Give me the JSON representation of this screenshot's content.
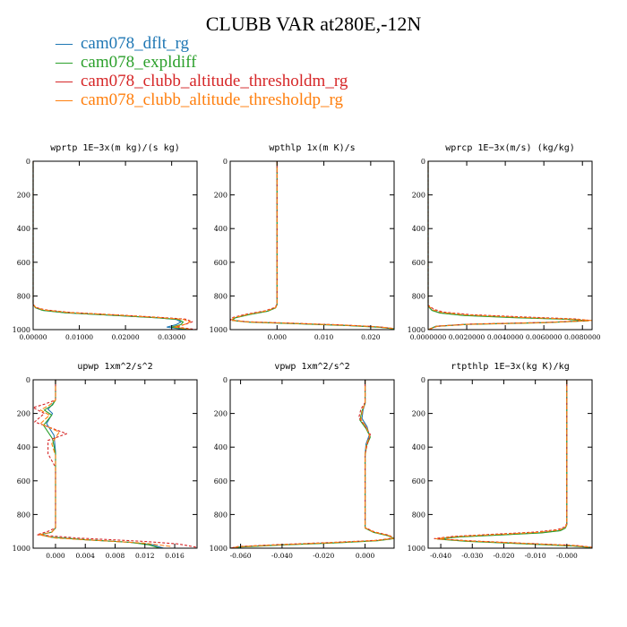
{
  "title": "CLUBB VAR at280E,-12N",
  "colors": {
    "s0": "#1f77b4",
    "s1": "#2ca02c",
    "s2": "#d62728",
    "s3": "#ff7f0e"
  },
  "legend": [
    {
      "dash": "—",
      "label": "cam078_dflt_rg"
    },
    {
      "dash": "—",
      "label": "cam078_expldiff"
    },
    {
      "dash": "—",
      "label": "cam078_clubb_altitude_thresholdm_rg"
    },
    {
      "dash": "—",
      "label": "cam078_clubb_altitude_thresholdp_rg"
    }
  ],
  "chart_data": [
    {
      "type": "line",
      "title": "wprtp  1E−3x(m kg)/(s kg)",
      "xlim": [
        0,
        0.0355
      ],
      "ylim": [
        1000,
        0
      ],
      "xticks": [
        0,
        0.01,
        0.02,
        0.03
      ],
      "xticklabels": [
        "0.00000",
        "0.01000",
        "0.02000",
        "0.03000"
      ],
      "yticks": [
        0,
        200,
        400,
        600,
        800,
        1000
      ],
      "yticklabels": [
        "0",
        "200",
        "400",
        "600",
        "800",
        "1000"
      ],
      "series": [
        {
          "name": "cam078_dflt_rg",
          "x": [
            0,
            0,
            0.0005,
            0.002,
            0.007,
            0.017,
            0.027,
            0.031,
            0.032,
            0.031,
            0.029,
            0.033
          ],
          "y": [
            0,
            850,
            870,
            885,
            900,
            915,
            930,
            940,
            955,
            970,
            985,
            1000
          ]
        },
        {
          "name": "cam078_expldiff",
          "x": [
            0,
            0,
            0.0005,
            0.002,
            0.007,
            0.017,
            0.027,
            0.0315,
            0.0325,
            0.032,
            0.03,
            0.034
          ],
          "y": [
            0,
            850,
            870,
            885,
            900,
            915,
            930,
            940,
            955,
            970,
            985,
            1000
          ]
        },
        {
          "name": "cam078_clubb_altitude_thresholdm_rg",
          "x": [
            0,
            0,
            0.0006,
            0.0025,
            0.008,
            0.018,
            0.028,
            0.033,
            0.0345,
            0.033,
            0.031,
            0.0355
          ],
          "y": [
            0,
            850,
            868,
            882,
            898,
            912,
            928,
            938,
            953,
            968,
            984,
            1000
          ]
        },
        {
          "name": "cam078_clubb_altitude_thresholdp_rg",
          "x": [
            0,
            0,
            0.0006,
            0.0023,
            0.0078,
            0.0178,
            0.0278,
            0.0325,
            0.034,
            0.0328,
            0.0305,
            0.0345
          ],
          "y": [
            0,
            850,
            869,
            883,
            899,
            913,
            929,
            939,
            954,
            969,
            984,
            1000
          ]
        }
      ]
    },
    {
      "type": "line",
      "title": "wpthlp  1x(m K)/s",
      "xlim": [
        -0.01,
        0.025
      ],
      "ylim": [
        1000,
        0
      ],
      "xticks": [
        0,
        0.01,
        0.02
      ],
      "xticklabels": [
        "0.000",
        "0.010",
        "0.020"
      ],
      "yticks": [
        0,
        200,
        400,
        600,
        800,
        1000
      ],
      "yticklabels": [
        "0",
        "200",
        "400",
        "600",
        "800",
        "1000"
      ],
      "series": [
        {
          "name": "cam078_dflt_rg",
          "x": [
            0,
            0,
            -0.0003,
            -0.002,
            -0.006,
            -0.009,
            -0.0095,
            -0.006,
            0.005,
            0.015,
            0.022,
            0.025
          ],
          "y": [
            0,
            850,
            870,
            890,
            910,
            930,
            945,
            955,
            965,
            975,
            985,
            995
          ]
        },
        {
          "name": "cam078_expldiff",
          "x": [
            0,
            0,
            -0.0003,
            -0.002,
            -0.006,
            -0.009,
            -0.0095,
            -0.006,
            0.005,
            0.015,
            0.022,
            0.025
          ],
          "y": [
            0,
            851,
            871,
            891,
            911,
            931,
            946,
            956,
            966,
            976,
            986,
            996
          ]
        },
        {
          "name": "cam078_clubb_altitude_thresholdm_rg",
          "x": [
            0,
            0,
            -0.0004,
            -0.0025,
            -0.0065,
            -0.0095,
            -0.01,
            -0.0065,
            0.0045,
            0.0145,
            0.0215,
            0.025
          ],
          "y": [
            0,
            848,
            868,
            888,
            908,
            928,
            943,
            953,
            963,
            973,
            983,
            993
          ]
        },
        {
          "name": "cam078_clubb_altitude_thresholdp_rg",
          "x": [
            0,
            0,
            -0.0003,
            -0.0022,
            -0.0062,
            -0.0092,
            -0.0098,
            -0.0062,
            0.0048,
            0.0148,
            0.0218,
            0.025
          ],
          "y": [
            0,
            849,
            869,
            889,
            909,
            929,
            944,
            954,
            964,
            974,
            984,
            994
          ]
        }
      ]
    },
    {
      "type": "line",
      "title": "wprcp  1E−3x(m/s) (kg/kg)",
      "xlim": [
        0,
        0.0085
      ],
      "ylim": [
        1000,
        0
      ],
      "xticks": [
        0,
        0.002,
        0.004,
        0.006,
        0.008
      ],
      "xticklabels": [
        "0.0000000",
        "0.0020000",
        "0.0040000",
        "0.0060000",
        "0.0080000"
      ],
      "yticks": [
        0,
        200,
        400,
        600,
        800,
        1000
      ],
      "yticklabels": [
        "0",
        "200",
        "400",
        "600",
        "800",
        "1000"
      ],
      "series": [
        {
          "name": "cam078_dflt_rg",
          "x": [
            0,
            0,
            0.0002,
            0.0006,
            0.0018,
            0.0045,
            0.0072,
            0.0083,
            0.006,
            0.002,
            0.0004,
            0
          ],
          "y": [
            0,
            860,
            885,
            900,
            915,
            928,
            938,
            947,
            958,
            968,
            980,
            1000
          ]
        },
        {
          "name": "cam078_expldiff",
          "x": [
            0,
            0,
            0.0002,
            0.0006,
            0.0018,
            0.0045,
            0.0072,
            0.0083,
            0.006,
            0.002,
            0.0004,
            0
          ],
          "y": [
            0,
            861,
            886,
            901,
            916,
            929,
            939,
            948,
            959,
            969,
            981,
            1000
          ]
        },
        {
          "name": "cam078_clubb_altitude_thresholdm_rg",
          "x": [
            0,
            0,
            0.0003,
            0.0008,
            0.0022,
            0.005,
            0.0076,
            0.0084,
            0.0062,
            0.0022,
            0.0005,
            0
          ],
          "y": [
            0,
            855,
            880,
            896,
            911,
            925,
            936,
            945,
            957,
            967,
            979,
            1000
          ]
        },
        {
          "name": "cam078_clubb_altitude_thresholdp_rg",
          "x": [
            0,
            0,
            0.00025,
            0.0007,
            0.002,
            0.0048,
            0.0074,
            0.0085,
            0.0061,
            0.0021,
            0.00045,
            0
          ],
          "y": [
            0,
            858,
            883,
            898,
            913,
            927,
            937,
            946,
            958,
            968,
            980,
            1000
          ]
        }
      ]
    },
    {
      "type": "line",
      "title": "upwp  1xm^2/s^2",
      "xlim": [
        -0.003,
        0.019
      ],
      "ylim": [
        1000,
        0
      ],
      "xticks": [
        0,
        0.004,
        0.008,
        0.012,
        0.016
      ],
      "xticklabels": [
        "0.000",
        "0.004",
        "0.008",
        "0.012",
        "0.016"
      ],
      "yticks": [
        0,
        200,
        400,
        600,
        800,
        1000
      ],
      "yticklabels": [
        "0",
        "200",
        "400",
        "600",
        "800",
        "1000"
      ],
      "series": [
        {
          "name": "cam078_dflt_rg",
          "x": [
            0,
            0,
            -0.0005,
            -0.001,
            -0.0004,
            -0.0012,
            -0.0002,
            0,
            0,
            -0.0005,
            -0.002,
            -0.0005,
            0.004,
            0.01,
            0.013,
            0.0145
          ],
          "y": [
            0,
            120,
            150,
            175,
            200,
            260,
            330,
            430,
            880,
            905,
            920,
            935,
            950,
            965,
            980,
            1000
          ]
        },
        {
          "name": "cam078_expldiff",
          "x": [
            0,
            0,
            -0.0004,
            -0.0015,
            -0.0005,
            -0.0016,
            -0.0004,
            0,
            0,
            -0.0005,
            -0.002,
            -0.0005,
            0.004,
            0.01,
            0.0125,
            0.014
          ],
          "y": [
            0,
            120,
            150,
            180,
            210,
            270,
            350,
            440,
            880,
            905,
            920,
            935,
            950,
            965,
            980,
            1000
          ]
        },
        {
          "name": "cam078_clubb_altitude_thresholdm_rg",
          "x": [
            0,
            0,
            -0.0015,
            -0.003,
            -0.0015,
            -0.0028,
            0.0015,
            -0.001,
            -0.001,
            0,
            0,
            -0.001,
            -0.0025,
            0.003,
            0.012,
            0.0165,
            0.019
          ],
          "y": [
            0,
            120,
            145,
            165,
            200,
            250,
            320,
            360,
            440,
            520,
            880,
            900,
            920,
            940,
            960,
            975,
            995
          ]
        },
        {
          "name": "cam078_clubb_altitude_thresholdp_rg",
          "x": [
            0,
            0,
            -0.0008,
            -0.002,
            -0.0008,
            -0.002,
            0.0005,
            -0.0005,
            0,
            0,
            -0.0005,
            -0.0022,
            0,
            0.006,
            0.012,
            0.0155
          ],
          "y": [
            0,
            120,
            150,
            180,
            210,
            260,
            310,
            380,
            450,
            880,
            905,
            920,
            940,
            955,
            970,
            990
          ]
        }
      ]
    },
    {
      "type": "line",
      "title": "vpwp  1xm^2/s^2",
      "xlim": [
        -0.065,
        0.014
      ],
      "ylim": [
        1000,
        0
      ],
      "xticks": [
        -0.06,
        -0.04,
        -0.02,
        0
      ],
      "xticklabels": [
        "-0.060",
        "-0.040",
        "-0.020",
        "0.000"
      ],
      "yticks": [
        0,
        200,
        400,
        600,
        800,
        1000
      ],
      "yticklabels": [
        "0",
        "200",
        "400",
        "600",
        "800",
        "1000"
      ],
      "series": [
        {
          "name": "cam078_dflt_rg",
          "x": [
            0,
            0,
            -0.001,
            -0.0015,
            0.001,
            0.002,
            0.0005,
            0,
            0,
            0.004,
            0.011,
            0.014,
            0.006,
            -0.015,
            -0.04,
            -0.06,
            -0.065
          ],
          "y": [
            0,
            140,
            180,
            230,
            280,
            330,
            380,
            440,
            880,
            905,
            925,
            942,
            955,
            968,
            980,
            992,
            1000
          ]
        },
        {
          "name": "cam078_expldiff",
          "x": [
            0,
            0,
            -0.0015,
            -0.0025,
            0.0005,
            0.0025,
            0.0008,
            0,
            0,
            0.004,
            0.011,
            0.014,
            0.006,
            -0.015,
            -0.04,
            -0.06,
            -0.065
          ],
          "y": [
            0,
            140,
            185,
            240,
            290,
            340,
            390,
            450,
            881,
            906,
            926,
            943,
            956,
            969,
            981,
            993,
            1000
          ]
        },
        {
          "name": "cam078_clubb_altitude_thresholdm_rg",
          "x": [
            0,
            0,
            -0.002,
            -0.003,
            0,
            0.0025,
            0.001,
            0,
            0,
            0.0045,
            0.0115,
            0.014,
            0.0055,
            -0.016,
            -0.041,
            -0.061,
            -0.065
          ],
          "y": [
            0,
            135,
            175,
            225,
            275,
            325,
            385,
            445,
            878,
            903,
            923,
            940,
            953,
            966,
            978,
            990,
            1000
          ]
        },
        {
          "name": "cam078_clubb_altitude_thresholdp_rg",
          "x": [
            0,
            0,
            -0.0012,
            -0.002,
            0.0008,
            0.0022,
            0.0006,
            0,
            0,
            0.0042,
            0.0112,
            0.014,
            0.0058,
            -0.0155,
            -0.0405,
            -0.0605,
            -0.065
          ],
          "y": [
            0,
            138,
            180,
            235,
            285,
            335,
            385,
            445,
            879,
            904,
            924,
            941,
            954,
            967,
            979,
            991,
            1000
          ]
        }
      ]
    },
    {
      "type": "line",
      "title": "rtpthlp  1E−3x(kg K)/kg",
      "xlim": [
        -0.044,
        0.008
      ],
      "ylim": [
        1000,
        0
      ],
      "xticks": [
        -0.04,
        -0.03,
        -0.02,
        -0.01,
        0
      ],
      "xticklabels": [
        "-0.040",
        "-0.030",
        "-0.020",
        "-0.010",
        "-0.000"
      ],
      "yticks": [
        0,
        200,
        400,
        600,
        800,
        1000
      ],
      "yticklabels": [
        "0",
        "200",
        "400",
        "600",
        "800",
        "1000"
      ],
      "series": [
        {
          "name": "cam078_dflt_rg",
          "x": [
            0,
            0,
            -0.0005,
            -0.002,
            -0.008,
            -0.02,
            -0.034,
            -0.041,
            -0.032,
            -0.015,
            0.002,
            0.008
          ],
          "y": [
            0,
            860,
            880,
            895,
            908,
            920,
            932,
            945,
            958,
            972,
            986,
            996
          ]
        },
        {
          "name": "cam078_expldiff",
          "x": [
            0,
            0,
            -0.0005,
            -0.002,
            -0.008,
            -0.02,
            -0.034,
            -0.041,
            -0.032,
            -0.015,
            0.002,
            0.008
          ],
          "y": [
            0,
            861,
            881,
            896,
            909,
            921,
            933,
            946,
            959,
            973,
            987,
            997
          ]
        },
        {
          "name": "cam078_clubb_altitude_thresholdm_rg",
          "x": [
            0,
            0,
            -0.0008,
            -0.003,
            -0.01,
            -0.023,
            -0.036,
            -0.042,
            -0.031,
            -0.014,
            0.003,
            0.008
          ],
          "y": [
            0,
            855,
            875,
            890,
            904,
            917,
            930,
            943,
            956,
            970,
            984,
            994
          ]
        },
        {
          "name": "cam078_clubb_altitude_thresholdp_rg",
          "x": [
            0,
            0,
            -0.0006,
            -0.0025,
            -0.009,
            -0.0215,
            -0.035,
            -0.0415,
            -0.0315,
            -0.0145,
            0.0025,
            0.008
          ],
          "y": [
            0,
            858,
            878,
            892,
            906,
            918,
            931,
            944,
            957,
            971,
            985,
            995
          ]
        }
      ]
    }
  ]
}
